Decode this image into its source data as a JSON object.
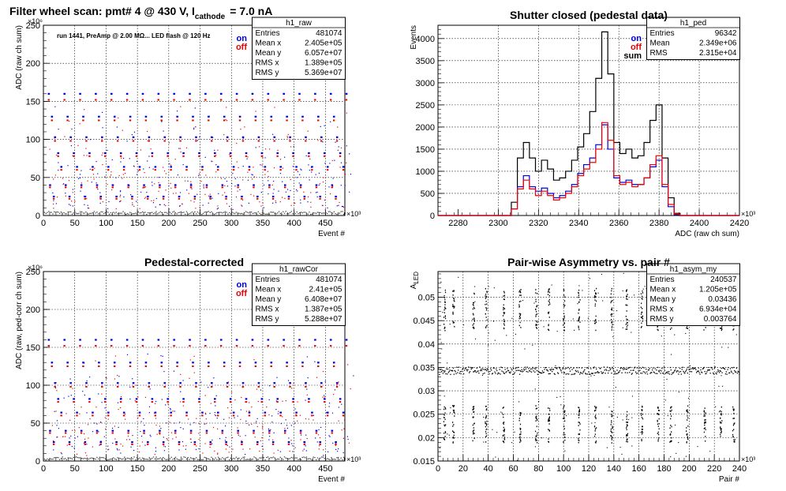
{
  "chart_data": [
    {
      "id": "p1",
      "type": "scatter",
      "title": "Filter wheel scan: pmt#   4 @   430 V, I",
      "title_sub": "cathode",
      "title_tail": "= 7.0 nA",
      "note": "run 1441, PreAmp @ 2.00 MΩ... LED flash @  120 Hz",
      "xlabel": "Event #",
      "ylabel": "ADC (raw ch sum)",
      "x_exponent": "×10³",
      "y_exponent": "×10⁶",
      "xlim": [
        0,
        481
      ],
      "ylim": [
        0,
        250
      ],
      "xticks": [
        0,
        50,
        100,
        150,
        200,
        250,
        300,
        350,
        400,
        450
      ],
      "yticks": [
        0,
        50,
        100,
        150,
        200,
        250
      ],
      "grid": true,
      "legend": {
        "on": "on",
        "off": "off"
      },
      "colors": {
        "on": "#0000dd",
        "off": "#ee0000",
        "noise": "#444444"
      },
      "step_levels": [
        {
          "on": 160,
          "off": 152,
          "period": 25,
          "phase": 0
        },
        {
          "on": 130,
          "off": 125,
          "period": 25,
          "phase": 5
        },
        {
          "on": 103,
          "off": 98,
          "period": 25,
          "phase": 10
        },
        {
          "on": 82,
          "off": 78,
          "period": 25,
          "phase": 15
        },
        {
          "on": 64,
          "off": 60,
          "period": 25,
          "phase": 20
        },
        {
          "on": 40,
          "off": 37,
          "period": 25,
          "phase": 2
        },
        {
          "on": 25,
          "off": 22,
          "period": 25,
          "phase": 8
        }
      ],
      "stats": {
        "name": "h1_raw",
        "rows": [
          [
            "Entries",
            "481074"
          ],
          [
            "Mean x",
            "2.405e+05"
          ],
          [
            "Mean y",
            "6.057e+07"
          ],
          [
            "RMS x",
            "1.389e+05"
          ],
          [
            "RMS y",
            "5.369e+07"
          ]
        ]
      }
    },
    {
      "id": "p2",
      "type": "line",
      "title": "Shutter closed (pedestal data)",
      "xlabel": "ADC (raw ch sum)",
      "ylabel": "Events",
      "x_exponent": "×10³",
      "xlim": [
        2270,
        2420
      ],
      "ylim": [
        0,
        4300
      ],
      "xticks": [
        2280,
        2300,
        2320,
        2340,
        2360,
        2380,
        2400,
        2420
      ],
      "yticks": [
        0,
        500,
        1000,
        1500,
        2000,
        2500,
        3000,
        3500,
        4000
      ],
      "grid": true,
      "legend": {
        "on": "on",
        "off": "off",
        "sum": "sum"
      },
      "colors": {
        "on": "#0000dd",
        "off": "#ee0000",
        "sum": "#000000"
      },
      "x": [
        2305,
        2308,
        2311,
        2314,
        2317,
        2320,
        2323,
        2326,
        2329,
        2332,
        2335,
        2338,
        2341,
        2344,
        2347,
        2350,
        2353,
        2356,
        2359,
        2362,
        2365,
        2368,
        2371,
        2374,
        2377,
        2380,
        2383,
        2386,
        2389,
        2392
      ],
      "series": [
        {
          "name": "sum",
          "values": [
            0,
            300,
            1300,
            1650,
            1300,
            1000,
            1250,
            1050,
            800,
            850,
            1000,
            1250,
            1550,
            1850,
            2350,
            3100,
            4150,
            3200,
            1650,
            1400,
            1500,
            1300,
            1350,
            1650,
            2150,
            2500,
            1300,
            400,
            50,
            0
          ]
        },
        {
          "name": "on",
          "values": [
            0,
            150,
            650,
            900,
            650,
            550,
            620,
            500,
            400,
            450,
            550,
            700,
            950,
            1150,
            1300,
            1600,
            2050,
            1500,
            850,
            750,
            800,
            700,
            700,
            850,
            1100,
            1250,
            650,
            200,
            20,
            0
          ]
        },
        {
          "name": "off",
          "values": [
            0,
            150,
            600,
            800,
            600,
            450,
            550,
            450,
            350,
            400,
            500,
            650,
            900,
            1050,
            1200,
            1500,
            2100,
            1700,
            900,
            700,
            750,
            650,
            700,
            850,
            1150,
            1350,
            700,
            250,
            30,
            0
          ]
        }
      ],
      "stats": {
        "name": "h1_ped",
        "rows": [
          [
            "Entries",
            "96342"
          ],
          [
            "Mean",
            "2.349e+06"
          ],
          [
            "RMS",
            "2.315e+04"
          ]
        ]
      }
    },
    {
      "id": "p3",
      "type": "scatter",
      "title": "Pedestal-corrected",
      "xlabel": "Event #",
      "ylabel": "ADC (raw, ped-corr ch sum)",
      "x_exponent": "×10³",
      "y_exponent": "×10⁶",
      "xlim": [
        0,
        481
      ],
      "ylim": [
        0,
        250
      ],
      "xticks": [
        0,
        50,
        100,
        150,
        200,
        250,
        300,
        350,
        400,
        450
      ],
      "yticks": [
        0,
        50,
        100,
        150,
        200,
        250
      ],
      "grid": true,
      "legend": {
        "on": "on",
        "off": "off"
      },
      "colors": {
        "on": "#0000dd",
        "off": "#ee0000",
        "noise": "#444444"
      },
      "step_levels": [
        {
          "on": 160,
          "off": 152,
          "period": 25,
          "phase": 0
        },
        {
          "on": 130,
          "off": 125,
          "period": 25,
          "phase": 5
        },
        {
          "on": 103,
          "off": 98,
          "period": 25,
          "phase": 10
        },
        {
          "on": 82,
          "off": 78,
          "period": 25,
          "phase": 15
        },
        {
          "on": 64,
          "off": 60,
          "period": 25,
          "phase": 20
        },
        {
          "on": 40,
          "off": 37,
          "period": 25,
          "phase": 2
        },
        {
          "on": 25,
          "off": 22,
          "period": 25,
          "phase": 8
        }
      ],
      "stats": {
        "name": "h1_rawCor",
        "rows": [
          [
            "Entries",
            "481074"
          ],
          [
            "Mean x",
            "2.41e+05"
          ],
          [
            "Mean y",
            "6.408e+07"
          ],
          [
            "RMS x",
            "1.387e+05"
          ],
          [
            "RMS y",
            "5.288e+07"
          ]
        ]
      }
    },
    {
      "id": "p4",
      "type": "scatter",
      "title": "Pair-wise Asymmetry vs. pair #",
      "xlabel": "Pair #",
      "ylabel": "A",
      "ylabel_sub": "LED",
      "x_exponent": "×10³",
      "xlim": [
        0,
        240
      ],
      "ylim": [
        0.015,
        0.0555
      ],
      "xticks": [
        0,
        20,
        40,
        60,
        80,
        100,
        120,
        140,
        160,
        180,
        200,
        220,
        240
      ],
      "yticks": [
        0.015,
        0.02,
        0.025,
        0.03,
        0.035,
        0.04,
        0.045,
        0.05
      ],
      "ytick_labels": [
        "0.015",
        "0.02",
        "0.025",
        "0.03",
        "0.035",
        "0.04",
        "0.045",
        "0.05"
      ],
      "grid": true,
      "band_center": 0.0344,
      "streak_x": [
        5,
        12,
        28,
        38,
        52,
        65,
        78,
        88,
        100,
        112,
        125,
        138,
        150,
        162,
        175,
        185,
        198,
        212,
        225,
        235
      ],
      "colors": {
        "points": "#000000"
      },
      "stats": {
        "name": "h1_asym_my",
        "rows": [
          [
            "Entries",
            "240537"
          ],
          [
            "Mean x",
            "1.205e+05"
          ],
          [
            "Mean y",
            "0.03436"
          ],
          [
            "RMS x",
            "6.934e+04"
          ],
          [
            "RMS y",
            "0.003764"
          ]
        ]
      }
    }
  ]
}
